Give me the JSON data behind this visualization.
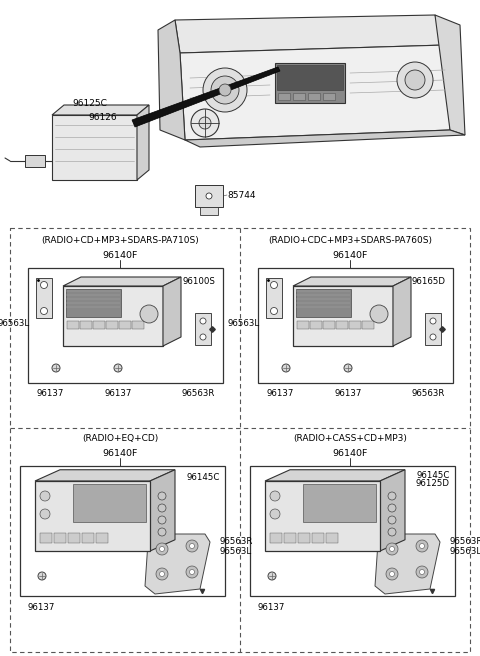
{
  "bg_color": "#ffffff",
  "fig_width": 4.8,
  "fig_height": 6.56,
  "dpi": 100,
  "quadrants": [
    {
      "title": "(RADIO+CD+MP3+SDARS-PA710S)",
      "part_top": "96140F",
      "part_main": "96100S",
      "part_left": "96563L",
      "part_bl1": "96137",
      "part_bl2": "96137",
      "part_br": "96563R"
    },
    {
      "title": "(RADIO+CDC+MP3+SDARS-PA760S)",
      "part_top": "96140F",
      "part_main": "96165D",
      "part_left": "96563L",
      "part_bl1": "96137",
      "part_bl2": "96137",
      "part_br": "96563R"
    },
    {
      "title": "(RADIO+EQ+CD)",
      "part_top": "96140F",
      "part_main": "96145C",
      "part_bl1": "96137",
      "part_br1": "96563R",
      "part_br2": "96563L"
    },
    {
      "title": "(RADIO+CASS+CD+MP3)",
      "part_top": "96140F",
      "part_main1": "96145C",
      "part_main2": "96125D",
      "part_bl1": "96137",
      "part_br1": "96563R",
      "part_br2": "96563L"
    }
  ],
  "top_labels": {
    "label1": "96125C",
    "label2": "96126",
    "label3": "85744"
  }
}
